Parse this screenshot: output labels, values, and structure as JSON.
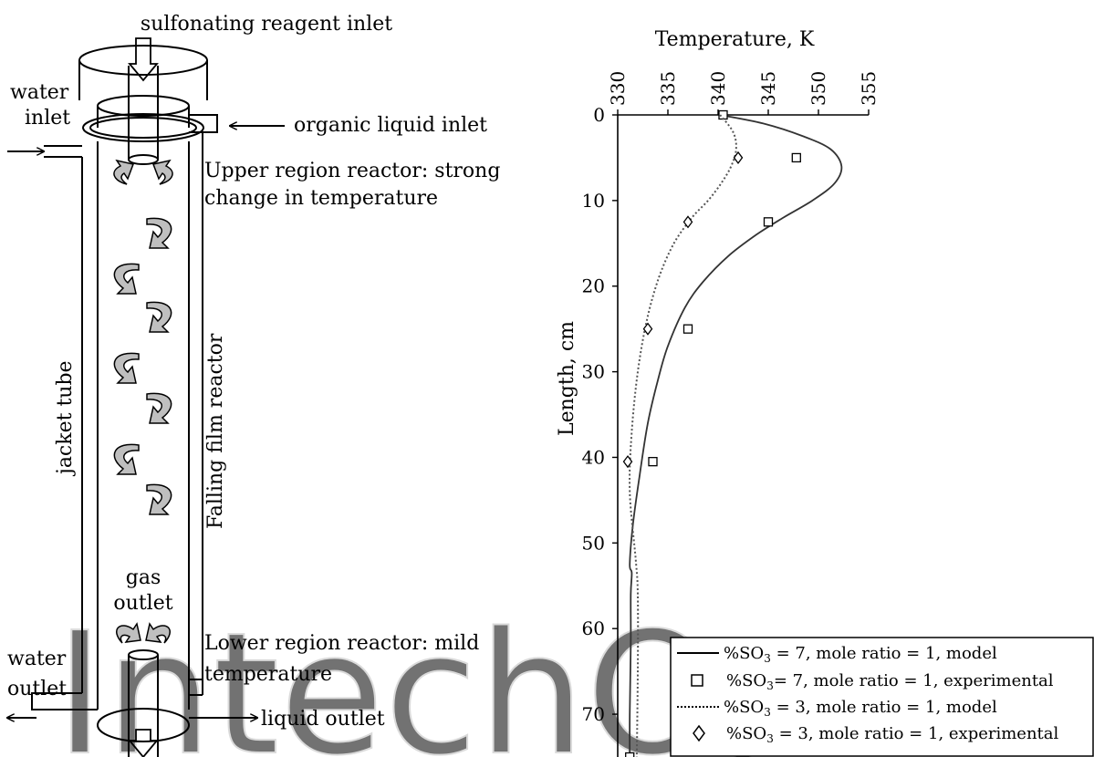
{
  "diagram": {
    "labels": {
      "reagent_inlet": "sulfonating reagent inlet",
      "water_inlet_1": "water",
      "water_inlet_2": "inlet",
      "organic_inlet": "organic liquid inlet",
      "upper_region_1": "Upper region reactor: strong",
      "upper_region_2": "change in temperature",
      "jacket_tube": "jacket tube",
      "falling_film": "Falling film reactor",
      "gas_outlet_1": "gas",
      "gas_outlet_2": "outlet",
      "lower_region_1": "Lower region reactor:  mild",
      "lower_region_2": "temperature",
      "water_outlet_1": "water",
      "water_outlet_2": "outlet",
      "liquid_outlet": "liquid outlet"
    },
    "watermark": "IntechOpen"
  },
  "chart_data": {
    "type": "line",
    "xlabel": "Temperature, K",
    "ylabel": "Length, cm",
    "xlim": [
      330,
      355
    ],
    "ylim": [
      0,
      75
    ],
    "x_axis_position": "top",
    "y_axis_inverted": true,
    "grid": false,
    "xticks": [
      330,
      335,
      340,
      345,
      350,
      355
    ],
    "yticks": [
      0,
      10,
      20,
      30,
      40,
      50,
      60,
      70
    ],
    "legend_position": "bottom-right",
    "series": [
      {
        "name": "%SO3 = 7, mole ratio = 1, model",
        "legend_prefix": "%SO",
        "legend_sub": "3",
        "legend_suffix": " = 7, mole ratio = 1, model",
        "style": "solid",
        "x": [
          340.2,
          344.5,
          348.5,
          351.2,
          352.3,
          351.6,
          349.4,
          346.5,
          343.8,
          341.0,
          338.5,
          336.7,
          335.0,
          334.0,
          333.0,
          332.2,
          331.5,
          331.2,
          331.4,
          331.3,
          331.3,
          331.2,
          331.2
        ],
        "y": [
          0,
          1,
          2.5,
          4,
          6,
          8,
          10,
          12,
          14,
          16.5,
          19.5,
          22.5,
          27,
          31,
          36,
          42,
          48,
          52.5,
          53.5,
          56,
          62,
          70,
          75
        ]
      },
      {
        "name": "%SO3= 7, mole ratio = 1, experimental",
        "legend_prefix": "%SO",
        "legend_sub": "3",
        "legend_suffix": "= 7, mole ratio = 1, experimental",
        "style": "square",
        "x": [
          340.5,
          347.8,
          345.0,
          337.0,
          333.5,
          331.2
        ],
        "y": [
          0,
          5,
          12.5,
          25,
          40.5,
          75
        ]
      },
      {
        "name": "%SO3 = 3, mole ratio = 1, model",
        "legend_prefix": "%SO",
        "legend_sub": "3",
        "legend_suffix": " = 3, mole ratio = 1, model",
        "style": "dotted",
        "x": [
          340.2,
          341.5,
          341.8,
          341.3,
          340.3,
          339.0,
          337.4,
          335.6,
          334.1,
          332.9,
          332.0,
          331.4,
          331.2,
          331.8,
          332.0,
          332.0,
          331.9
        ],
        "y": [
          0,
          2,
          4,
          6,
          8,
          10,
          12,
          15,
          19,
          24,
          30,
          37,
          44,
          52,
          56,
          65,
          75
        ]
      },
      {
        "name": "%SO3 = 3, mole ratio = 1, experimental",
        "legend_prefix": "%SO",
        "legend_sub": "3",
        "legend_suffix": " = 3, mole ratio = 1, experimental",
        "style": "diamond",
        "x": [
          342.0,
          337.0,
          333.0,
          331.0
        ],
        "y": [
          5,
          12.5,
          25,
          40.5
        ]
      }
    ]
  }
}
